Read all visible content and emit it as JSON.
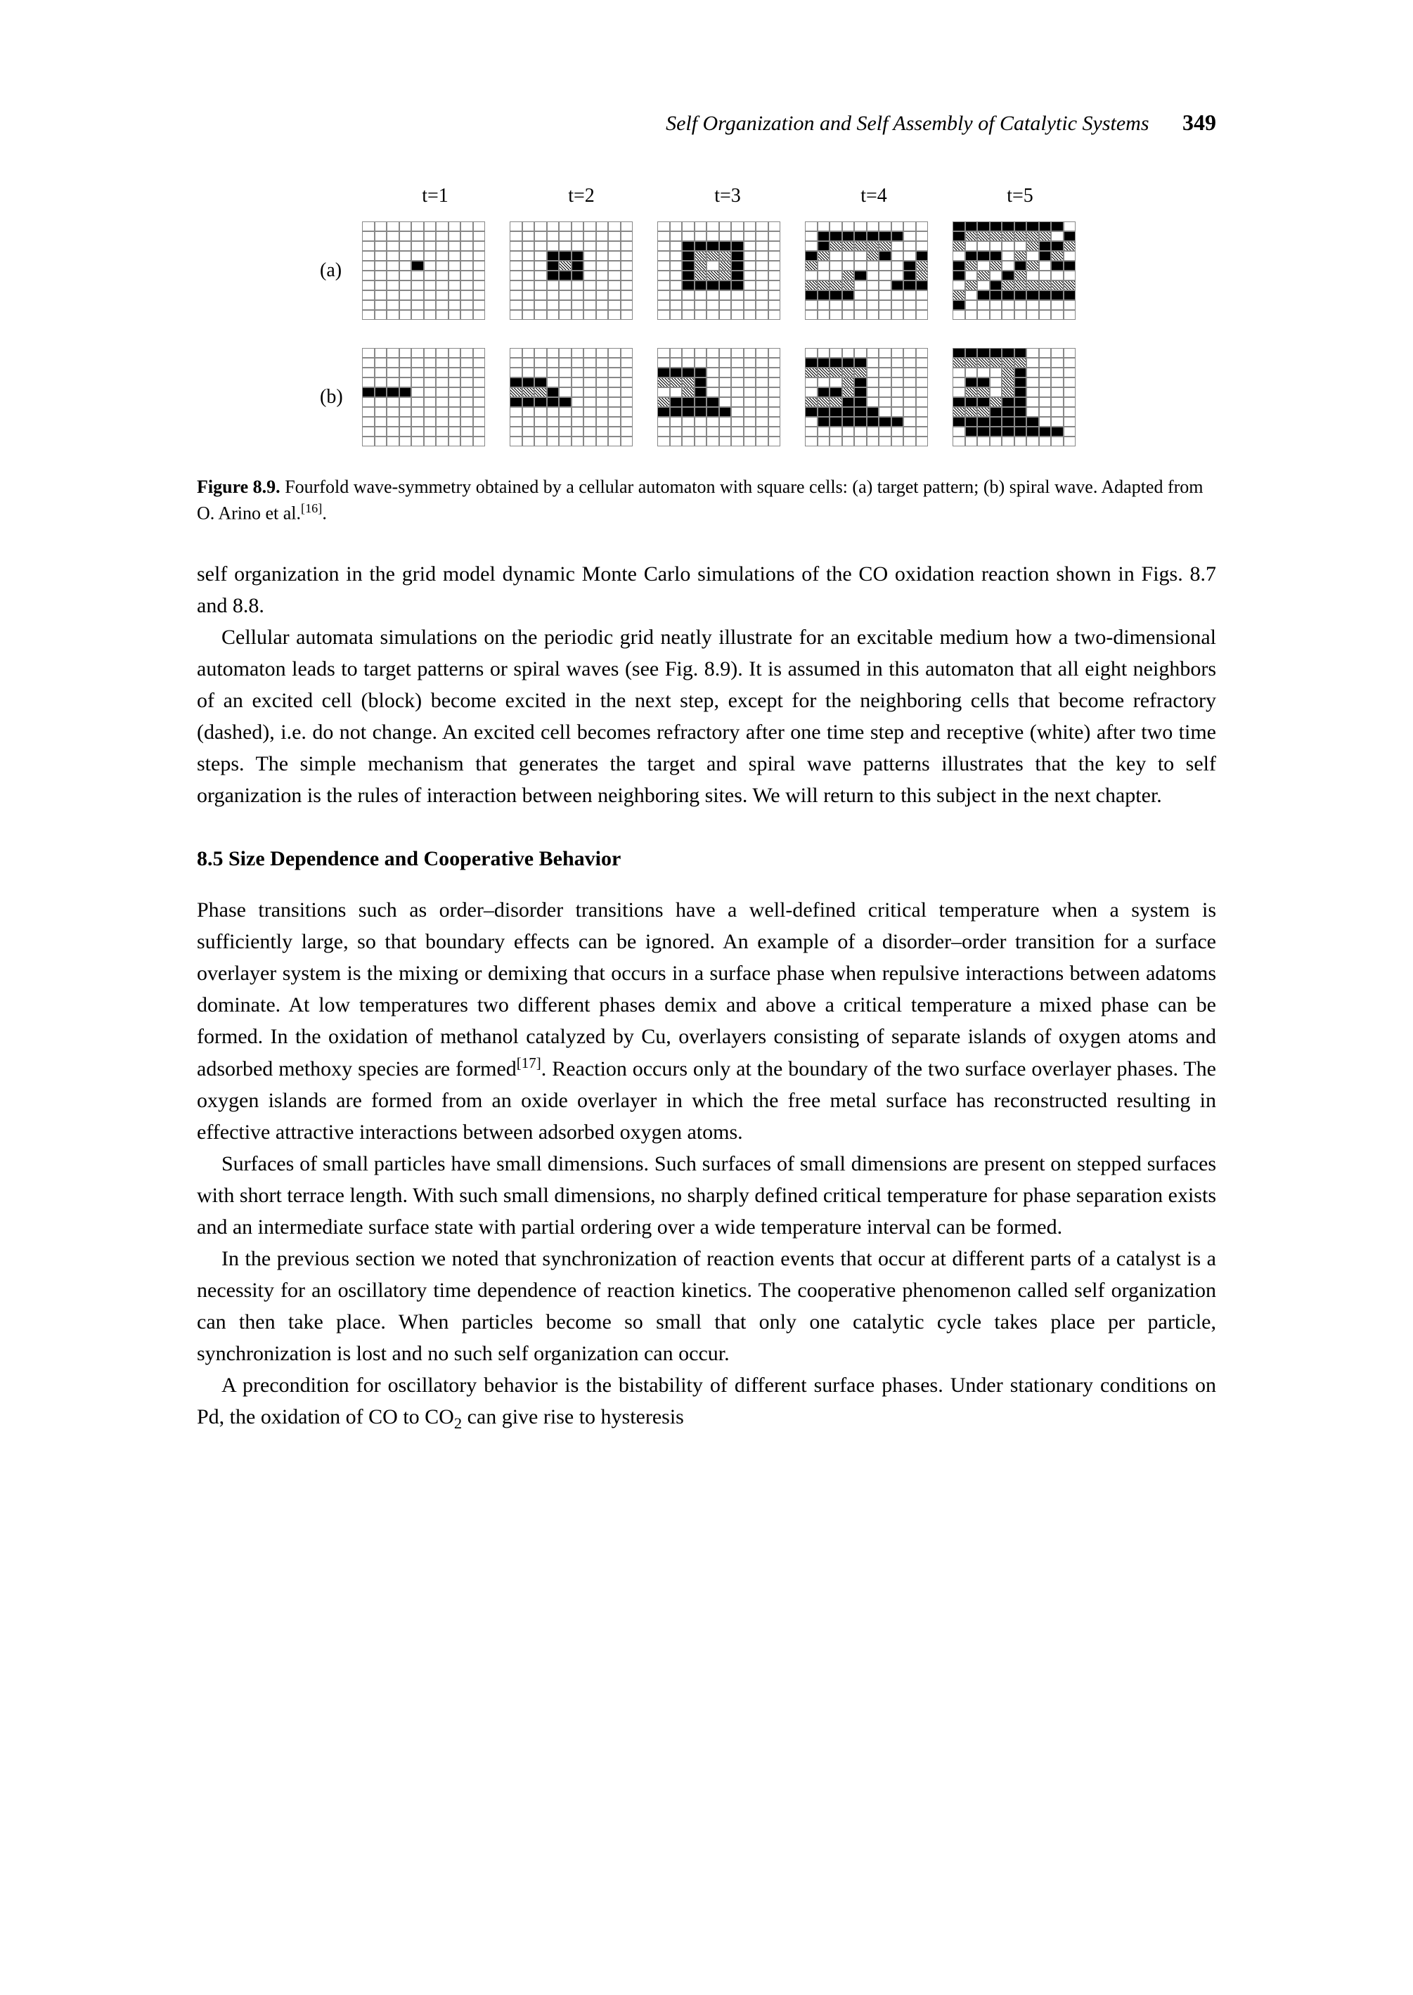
{
  "header": {
    "running_title": "Self Organization and Self Assembly of Catalytic Systems",
    "page_number": "349"
  },
  "figure": {
    "timesteps": [
      "t=1",
      "t=2",
      "t=3",
      "t=4",
      "t=5"
    ],
    "row_labels": [
      "(a)",
      "(b)"
    ],
    "grids_a": [
      "wwwwwwwwwwwwwwwwwwwwwwwwwwwwwwwwwwwwwwwwwwwwbwwwwwwwwwwwwwwwwwwwwwwwwwwwwwwwwwwwwwwwwwwwwwwwwwwwwwww",
      "wwwwwwwwwwwwwwwwwwwwwwwwwwwwwwwwwbbbwwwwwwwbdbwwwwwwwbbbwwwwwwwwwwwwwwwwwwwwwwwwwwwwwwwwwwwwwwwwwwww",
      "wwwwwwwwwwwwwwwwwwwwwwbbbbbwwwwwbdddbwwwwwbdwdbwwwwwbdddbwwwwwbbbbbwwwwwwwwwwwwwwwwwwwwwwwwwwwwwwwww",
      "wwwwwwwwwwwbbbbbbbwwwbdddddwwwbdwwwdbwwbdwwwwwwwbdwwwdbwwwbdddddwwwbbbbbbbwwwwwwwwwwwwwwwwwwwwwwwwww",
      "bbbbbbbbbwbdddddddwbdwwwwwdbbdwbbbwdwbdwbdwdwbdwbbbwdwbdwwwwwdwbdddddddwbbbbbbbbbwwwwwwwwwwwwwwwwwww"
    ],
    "grids_b": [
      "wwwwwwwwwwwwwwwwwwwwwwwwwwwwwwwwwwwwwwwwbbbbwwwwwwwwwwwwwwwwwwwwwwwwwwwwwwwwwwwwwwwwwwwwwwwwwwwwwwww",
      "wwwwwwwwwwwwwwwwwwwwwwwwwwwwwwbbbwwwwwwwdddbwwwwwwbbbbbwwwwwwwwwwwwwwwwwwwwwwwwwwwwwwwwwwwwwwwwwwwww",
      "wwwwwwwwwwwwwwwwwwwwbbbbwwwwwwdddbwwwwwwwwdbwwwwwwdbbbbwwwwwbbbbbbwwwwwwwwwwwwwwwwwwwwwwwwwwwwwwwwww",
      "wwwwwwwwwwbbbbbwwwwwdddddwwwwwwwwdbwwwwwwbbdbwwwwwdddbbwwwwwbbbbbbwwwwwbbbbbbbwwwwwwwwwwwwwwwwwwwwww",
      "bbbbbbwwwwddddddwwwwwwwwdbwwwwwbbwdbwwwwwddwdbwwwwbbbdbbwwwwdddbbbwwwwbbbbbbbwwwwbbbbbbbbwwwwwwwwwww"
    ],
    "caption_label": "Figure 8.9.",
    "caption_text": " Fourfold wave-symmetry obtained by a cellular automaton with square cells: (a) target pattern; (b) spiral wave. Adapted from O. Arino et al.",
    "caption_ref": "[16]"
  },
  "paragraphs": {
    "p1": "self organization in the grid model dynamic Monte Carlo simulations of the CO oxidation reaction shown in Figs. 8.7 and 8.8.",
    "p2": "Cellular automata simulations on the periodic grid neatly illustrate for an excitable medium how a two-dimensional automaton leads to target patterns or spiral waves (see Fig. 8.9). It is assumed in this automaton that all eight neighbors of an excited cell (block) become excited in the next step, except for the neighboring cells that become refractory (dashed), i.e. do not change. An excited cell becomes refractory after one time step and receptive (white) after two time steps. The simple mechanism that generates the target and spiral wave patterns illustrates that the key to self organization is the rules of interaction between neighboring sites. We will return to this subject in the next chapter."
  },
  "section": {
    "number": "8.5",
    "title": "Size Dependence and Cooperative Behavior"
  },
  "section_paragraphs": {
    "sp1_a": "Phase transitions such as order–disorder transitions have a well-defined critical temperature when a system is sufficiently large, so that boundary effects can be ignored. An example of a disorder–order transition for a surface overlayer system is the mixing or demixing that occurs in a surface phase when repulsive interactions between adatoms dominate. At low temperatures two different phases demix and above a critical temperature a mixed phase can be formed. In the oxidation of methanol catalyzed by Cu, overlayers consisting of separate islands of oxygen atoms and adsorbed methoxy species are formed",
    "sp1_ref": "[17]",
    "sp1_b": ". Reaction occurs only at the boundary of the two surface overlayer phases. The oxygen islands are formed from an oxide overlayer in which the free metal surface has reconstructed resulting in effective attractive interactions between adsorbed oxygen atoms.",
    "sp2": "Surfaces of small particles have small dimensions. Such surfaces of small dimensions are present on stepped surfaces with short terrace length. With such small dimensions, no sharply defined critical temperature for phase separation exists and an intermediate surface state with partial ordering over a wide temperature interval can be formed.",
    "sp3": "In the previous section we noted that synchronization of reaction events that occur at different parts of a catalyst is a necessity for an oscillatory time dependence of reaction kinetics. The cooperative phenomenon called self organization can then take place. When particles become so small that only one catalytic cycle takes place per particle, synchronization is lost and no such self organization can occur.",
    "sp4_a": "A precondition for oscillatory behavior is the bistability of different surface phases. Under stationary conditions on Pd, the oxidation of CO to CO",
    "sp4_sub": "2",
    "sp4_b": " can give rise to hysteresis"
  }
}
